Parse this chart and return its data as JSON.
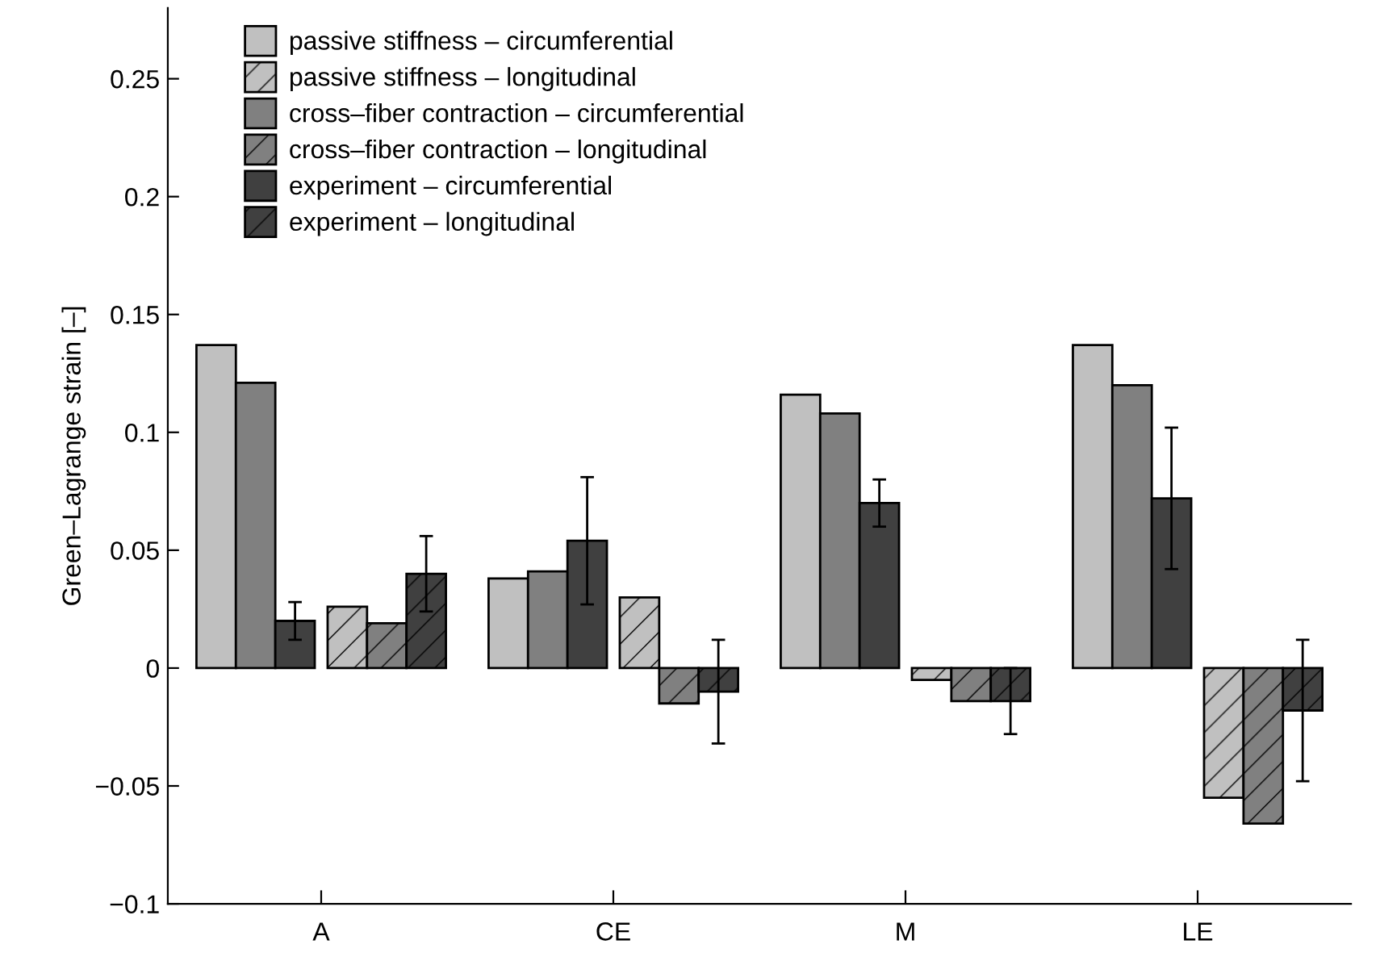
{
  "chart_data": {
    "type": "bar",
    "ylabel": "Green–Lagrange strain [–]",
    "categories": [
      "A",
      "CE",
      "M",
      "LE"
    ],
    "series": [
      {
        "name": "passive stiffness – circumferential",
        "color": "#c0c0c0",
        "values": [
          0.137,
          0.038,
          0.116,
          0.137
        ]
      },
      {
        "name": "passive stiffness – longitudinal",
        "color": "#c0c0c0",
        "values": [
          0.026,
          0.03,
          -0.005,
          -0.055
        ]
      },
      {
        "name": "cross–fiber contraction – circumferential",
        "color": "#808080",
        "values": [
          0.121,
          0.041,
          0.108,
          0.12
        ]
      },
      {
        "name": "cross–fiber contraction – longitudinal",
        "color": "#808080",
        "values": [
          0.019,
          -0.015,
          -0.014,
          -0.066
        ]
      },
      {
        "name": "experiment – circumferential",
        "color": "#404040",
        "values": [
          0.02,
          0.054,
          0.07,
          0.072
        ],
        "errors": [
          [
            0.012,
            0.028
          ],
          [
            0.027,
            0.081
          ],
          [
            0.06,
            0.08
          ],
          [
            0.042,
            0.102
          ]
        ]
      },
      {
        "name": "experiment – longitudinal",
        "color": "#404040",
        "values": [
          0.04,
          -0.01,
          -0.014,
          -0.018
        ],
        "errors": [
          [
            0.024,
            0.056
          ],
          [
            -0.032,
            0.012
          ],
          [
            -0.028,
            0.0
          ],
          [
            -0.048,
            0.012
          ]
        ]
      }
    ],
    "ylim": [
      -0.1,
      0.28
    ],
    "yticks": [
      {
        "value": -0.1,
        "label": "−0.1"
      },
      {
        "value": -0.05,
        "label": "−0.05"
      },
      0,
      0.05,
      0.1,
      0.15,
      0.2,
      0.25
    ],
    "grid": false,
    "legend": "top left"
  }
}
